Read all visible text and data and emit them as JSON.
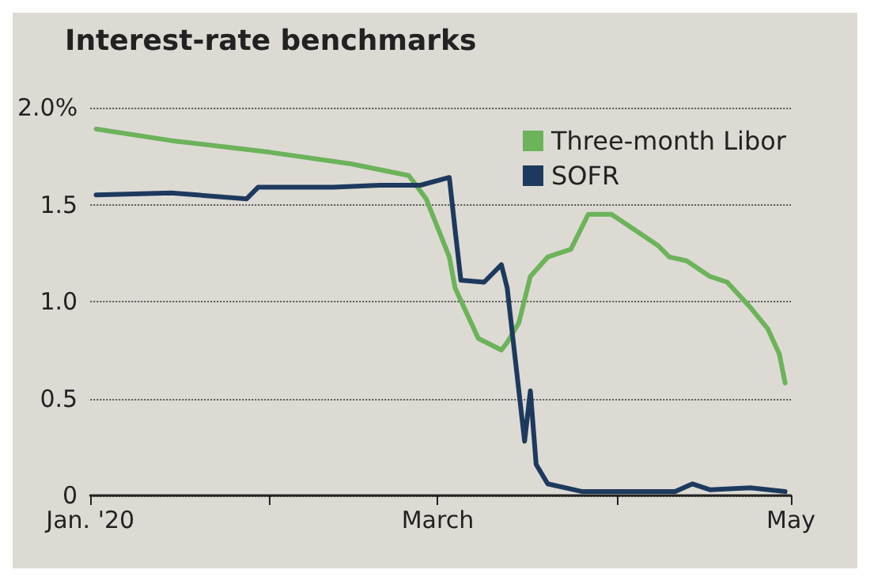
{
  "chart_data": {
    "type": "line",
    "title": "Interest-rate benchmarks",
    "xlim": [
      "2020-01-01",
      "2020-05-01"
    ],
    "xticks": [
      {
        "value": "2020-01-01",
        "label": "Jan. '20"
      },
      {
        "value": "2020-02-01",
        "label": null
      },
      {
        "value": "2020-03-01",
        "label": "March"
      },
      {
        "value": "2020-04-01",
        "label": null
      },
      {
        "value": "2020-05-01",
        "label": "May"
      }
    ],
    "ylim": [
      0,
      2
    ],
    "yticks": [
      {
        "value": 0,
        "label": "0"
      },
      {
        "value": 0.5,
        "label": "0.5"
      },
      {
        "value": 1,
        "label": "1.0"
      },
      {
        "value": 1.5,
        "label": "1.5"
      },
      {
        "value": 2,
        "label": "2.0%"
      }
    ],
    "grid": "y",
    "legend": "top right",
    "marker": "none",
    "line_style": "solid",
    "series": [
      {
        "name": "Three-month Libor",
        "color": "#6cb35a",
        "x": [
          "2020-01-02",
          "2020-01-15",
          "2020-02-01",
          "2020-02-15",
          "2020-02-25",
          "2020-02-28",
          "2020-03-03",
          "2020-03-04",
          "2020-03-08",
          "2020-03-12",
          "2020-03-13",
          "2020-03-15",
          "2020-03-17",
          "2020-03-20",
          "2020-03-24",
          "2020-03-27",
          "2020-03-31",
          "2020-04-04",
          "2020-04-08",
          "2020-04-10",
          "2020-04-13",
          "2020-04-17",
          "2020-04-20",
          "2020-04-24",
          "2020-04-27",
          "2020-04-29",
          "2020-04-30"
        ],
        "values": [
          1.89,
          1.83,
          1.77,
          1.71,
          1.65,
          1.53,
          1.23,
          1.07,
          0.81,
          0.75,
          0.79,
          0.89,
          1.13,
          1.23,
          1.27,
          1.45,
          1.45,
          1.37,
          1.29,
          1.23,
          1.21,
          1.13,
          1.1,
          0.97,
          0.86,
          0.73,
          0.58
        ]
      },
      {
        "name": "SOFR",
        "color": "#1d3a5e",
        "x": [
          "2020-01-02",
          "2020-01-15",
          "2020-01-28",
          "2020-01-30",
          "2020-02-12",
          "2020-02-20",
          "2020-02-27",
          "2020-03-03",
          "2020-03-04",
          "2020-03-05",
          "2020-03-09",
          "2020-03-12",
          "2020-03-13",
          "2020-03-16",
          "2020-03-17",
          "2020-03-18",
          "2020-03-20",
          "2020-03-26",
          "2020-04-11",
          "2020-04-14",
          "2020-04-17",
          "2020-04-24",
          "2020-04-30"
        ],
        "values": [
          1.55,
          1.56,
          1.53,
          1.59,
          1.59,
          1.6,
          1.6,
          1.64,
          1.37,
          1.11,
          1.1,
          1.19,
          1.07,
          0.28,
          0.54,
          0.16,
          0.06,
          0.02,
          0.02,
          0.06,
          0.03,
          0.04,
          0.02
        ]
      }
    ]
  }
}
